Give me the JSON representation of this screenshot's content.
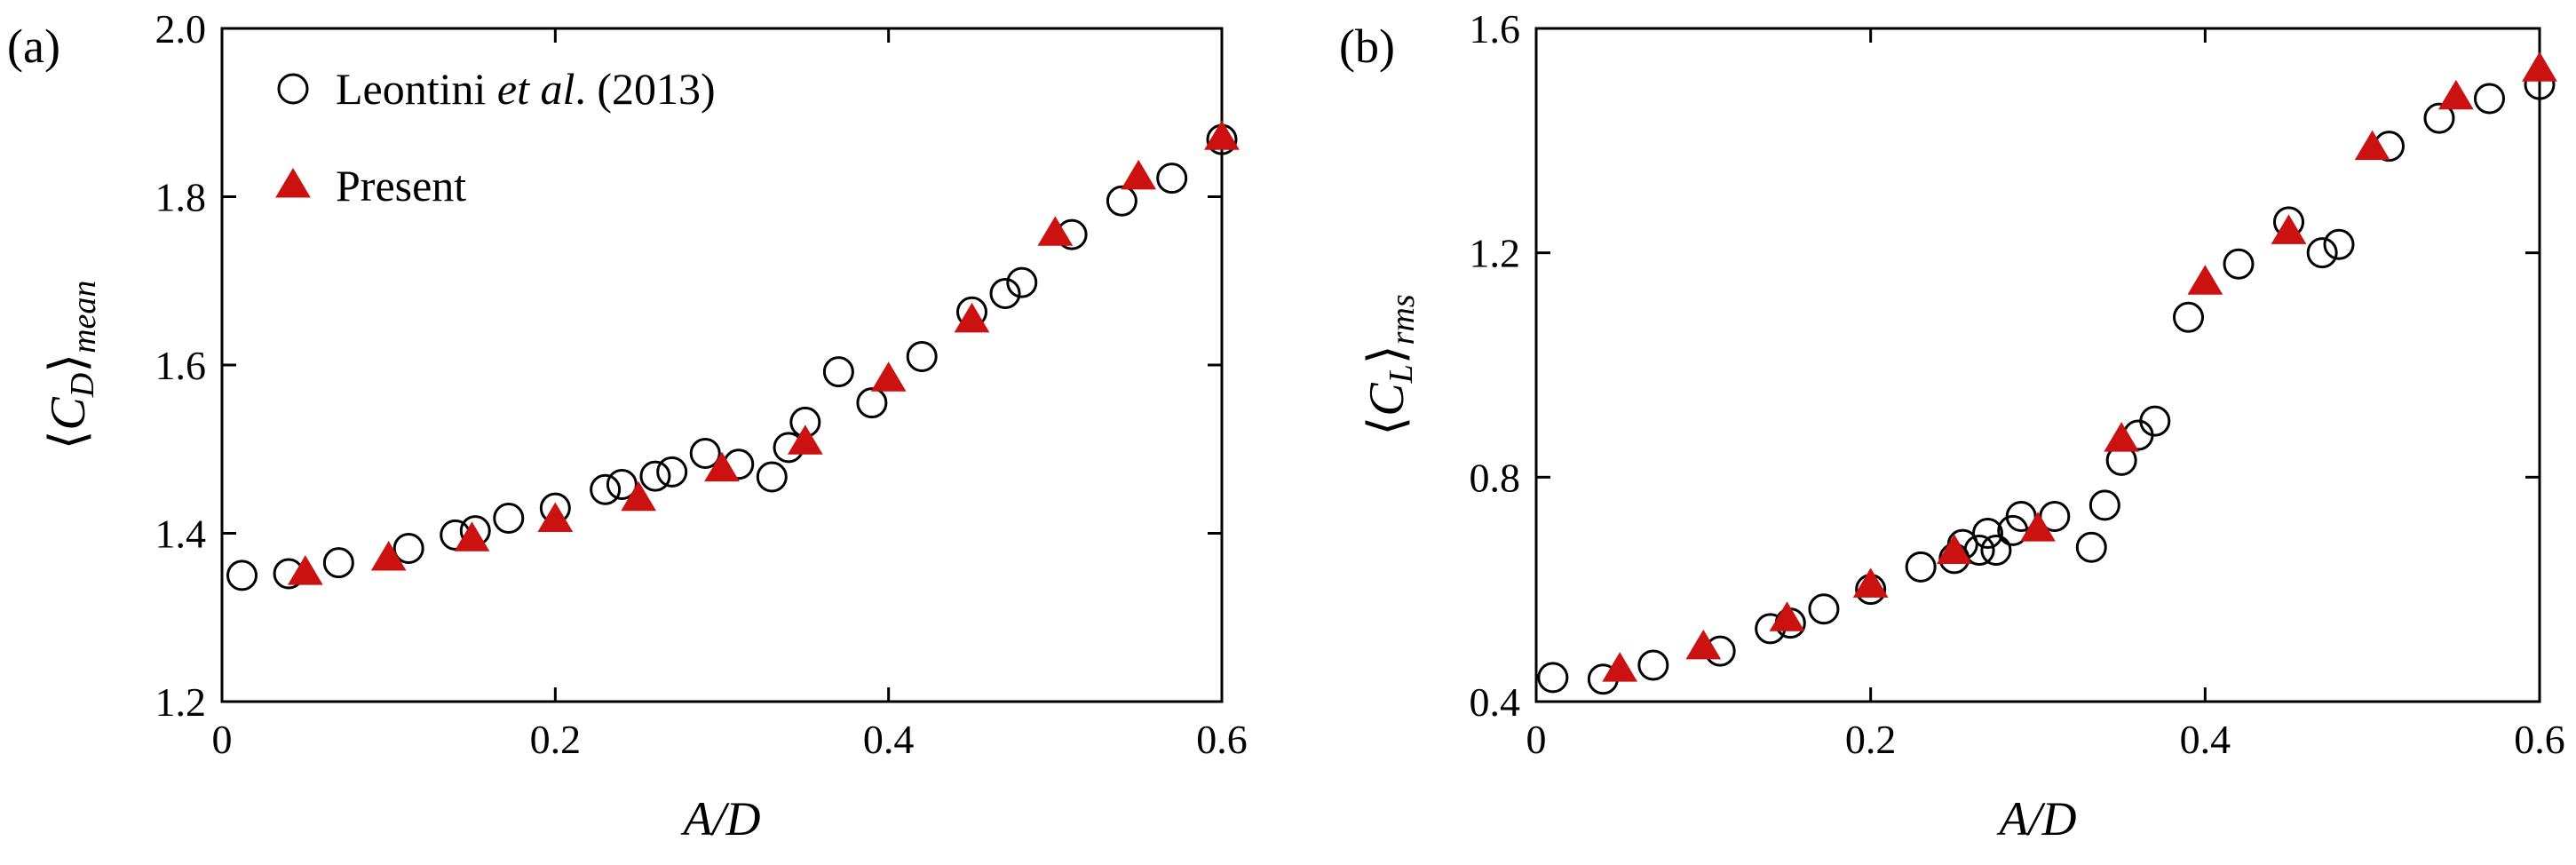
{
  "chart_data": [
    {
      "type": "scatter",
      "panel_label": "(a)",
      "xlabel": "A/D",
      "ylabel": "⟨C_D⟩_mean",
      "ylabel_parts": {
        "open": "⟨",
        "symbol": "C",
        "sub": "D",
        "close": "⟩",
        "suffix": "mean"
      },
      "xlim": [
        0,
        0.6
      ],
      "ylim": [
        1.2,
        2.0
      ],
      "xticks": [
        0,
        0.2,
        0.4,
        0.6
      ],
      "xtick_labels": [
        "0",
        "0.2",
        "0.4",
        "0.6"
      ],
      "yticks": [
        1.2,
        1.4,
        1.6,
        1.8,
        2.0
      ],
      "ytick_labels": [
        "1.2",
        "1.4",
        "1.6",
        "1.8",
        "2.0"
      ],
      "grid": false,
      "legend": {
        "placement": "top-left",
        "entries": [
          {
            "marker": "circle",
            "label_main": "Leontini ",
            "label_italic": "et al",
            "label_end": ". (2013)"
          },
          {
            "marker": "triangle",
            "label_main": "Present",
            "label_italic": "",
            "label_end": ""
          }
        ]
      },
      "series": [
        {
          "name": "Leontini et al. (2013)",
          "marker": "open-circle",
          "color": "#000000",
          "x": [
            0.012,
            0.04,
            0.07,
            0.112,
            0.14,
            0.152,
            0.172,
            0.2,
            0.23,
            0.24,
            0.26,
            0.27,
            0.29,
            0.31,
            0.33,
            0.34,
            0.35,
            0.37,
            0.39,
            0.42,
            0.45,
            0.47,
            0.48,
            0.51,
            0.54,
            0.57,
            0.6
          ],
          "y": [
            1.35,
            1.352,
            1.365,
            1.382,
            1.398,
            1.403,
            1.418,
            1.43,
            1.452,
            1.458,
            1.468,
            1.473,
            1.495,
            1.482,
            1.467,
            1.502,
            1.532,
            1.592,
            1.555,
            1.61,
            1.663,
            1.685,
            1.698,
            1.755,
            1.795,
            1.822,
            1.868
          ]
        },
        {
          "name": "Present",
          "marker": "filled-triangle",
          "color": "#cc1111",
          "x": [
            0.05,
            0.1,
            0.15,
            0.2,
            0.25,
            0.3,
            0.35,
            0.4,
            0.45,
            0.5,
            0.55,
            0.6
          ],
          "y": [
            1.355,
            1.372,
            1.395,
            1.418,
            1.443,
            1.478,
            1.51,
            1.585,
            1.655,
            1.758,
            1.825,
            1.872
          ]
        }
      ]
    },
    {
      "type": "scatter",
      "panel_label": "(b)",
      "xlabel": "A/D",
      "ylabel": "⟨C_L⟩_rms",
      "ylabel_parts": {
        "open": "⟨",
        "symbol": "C",
        "sub": "L",
        "close": "⟩",
        "suffix": "rms"
      },
      "xlim": [
        0,
        0.6
      ],
      "ylim": [
        0.4,
        1.6
      ],
      "xticks": [
        0,
        0.2,
        0.4,
        0.6
      ],
      "xtick_labels": [
        "0",
        "0.2",
        "0.4",
        "0.6"
      ],
      "yticks": [
        0.4,
        0.8,
        1.2,
        1.6
      ],
      "ytick_labels": [
        "0.4",
        "0.8",
        "1.2",
        "1.6"
      ],
      "grid": false,
      "series": [
        {
          "name": "Leontini et al. (2013)",
          "marker": "open-circle",
          "color": "#000000",
          "x": [
            0.01,
            0.04,
            0.07,
            0.11,
            0.14,
            0.152,
            0.172,
            0.2,
            0.23,
            0.25,
            0.255,
            0.265,
            0.27,
            0.275,
            0.285,
            0.29,
            0.31,
            0.332,
            0.34,
            0.35,
            0.36,
            0.37,
            0.39,
            0.42,
            0.45,
            0.47,
            0.48,
            0.51,
            0.54,
            0.57,
            0.6
          ],
          "y": [
            0.443,
            0.44,
            0.465,
            0.49,
            0.53,
            0.54,
            0.565,
            0.6,
            0.64,
            0.655,
            0.68,
            0.67,
            0.7,
            0.67,
            0.705,
            0.73,
            0.73,
            0.675,
            0.75,
            0.83,
            0.875,
            0.9,
            1.085,
            1.18,
            1.255,
            1.2,
            1.215,
            1.39,
            1.44,
            1.475,
            1.5
          ]
        },
        {
          "name": "Present",
          "marker": "filled-triangle",
          "color": "#cc1111",
          "x": [
            0.05,
            0.1,
            0.15,
            0.2,
            0.25,
            0.3,
            0.35,
            0.4,
            0.45,
            0.5,
            0.55,
            0.6
          ],
          "y": [
            0.46,
            0.5,
            0.55,
            0.61,
            0.67,
            0.71,
            0.87,
            1.15,
            1.24,
            1.39,
            1.48,
            1.53
          ]
        }
      ]
    }
  ]
}
